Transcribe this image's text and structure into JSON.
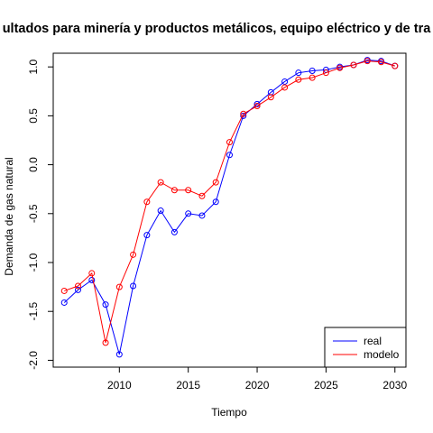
{
  "chart_data": {
    "type": "line",
    "title": "ultados para minería y productos metálicos, equipo eléctrico y de tra",
    "xlabel": "Tiempo",
    "ylabel": "Demanda de gas natural",
    "xlim": [
      2005.2,
      2030.8
    ],
    "ylim": [
      -2.07,
      1.14
    ],
    "x_ticks": [
      2010,
      2015,
      2020,
      2025,
      2030
    ],
    "y_ticks": [
      -2.0,
      -1.5,
      -1.0,
      -0.5,
      0.0,
      0.5,
      1.0
    ],
    "y_tick_labels": [
      "-2.0",
      "-1.5",
      "-1.0",
      "-0.5",
      "0.0",
      "0.5",
      "1.0"
    ],
    "grid": false,
    "legend_position": "bottom-right",
    "x": [
      2006,
      2007,
      2008,
      2009,
      2010,
      2011,
      2012,
      2013,
      2014,
      2015,
      2016,
      2017,
      2018,
      2019,
      2020,
      2021,
      2022,
      2023,
      2024,
      2025,
      2026,
      2027,
      2028,
      2029,
      2030
    ],
    "series": [
      {
        "name": "real",
        "color": "#0000ff",
        "marker": "open-circle",
        "values": [
          -1.41,
          -1.28,
          -1.18,
          -1.43,
          -1.94,
          -1.24,
          -0.72,
          -0.47,
          -0.69,
          -0.5,
          -0.52,
          -0.38,
          0.1,
          0.5,
          0.62,
          0.74,
          0.85,
          0.94,
          0.96,
          0.97,
          1.0,
          1.02,
          1.07,
          1.06,
          1.01
        ]
      },
      {
        "name": "modelo",
        "color": "#ff0000",
        "marker": "open-circle",
        "values": [
          -1.29,
          -1.24,
          -1.11,
          -1.82,
          -1.25,
          -0.92,
          -0.38,
          -0.18,
          -0.26,
          -0.26,
          -0.32,
          -0.18,
          0.23,
          0.52,
          0.6,
          0.69,
          0.79,
          0.87,
          0.89,
          0.94,
          0.99,
          1.02,
          1.06,
          1.05,
          1.01
        ]
      }
    ]
  }
}
